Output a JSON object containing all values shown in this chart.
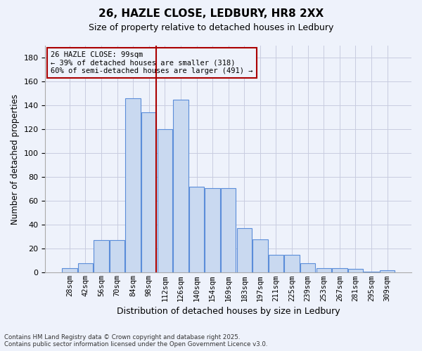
{
  "title": "26, HAZLE CLOSE, LEDBURY, HR8 2XX",
  "subtitle": "Size of property relative to detached houses in Ledbury",
  "xlabel": "Distribution of detached houses by size in Ledbury",
  "ylabel": "Number of detached properties",
  "footer_line1": "Contains HM Land Registry data © Crown copyright and database right 2025.",
  "footer_line2": "Contains public sector information licensed under the Open Government Licence v3.0.",
  "annotation_line1": "26 HAZLE CLOSE: 99sqm",
  "annotation_line2": "← 39% of detached houses are smaller (318)",
  "annotation_line3": "60% of semi-detached houses are larger (491) →",
  "categories": [
    "28sqm",
    "42sqm",
    "56sqm",
    "70sqm",
    "84sqm",
    "98sqm",
    "112sqm",
    "126sqm",
    "140sqm",
    "154sqm",
    "169sqm",
    "183sqm",
    "197sqm",
    "211sqm",
    "225sqm",
    "239sqm",
    "253sqm",
    "267sqm",
    "281sqm",
    "295sqm",
    "309sqm"
  ],
  "values": [
    4,
    8,
    27,
    27,
    146,
    134,
    120,
    145,
    72,
    71,
    71,
    37,
    28,
    15,
    15,
    8,
    4,
    4,
    3,
    1,
    2
  ],
  "bar_color": "#c9d9f0",
  "bar_edge_color": "#5b8dd9",
  "vline_color": "#aa0000",
  "vline_index": 5,
  "annotation_box_edge_color": "#aa0000",
  "background_color": "#eef2fb",
  "grid_color": "#c8cce0",
  "ylim": [
    0,
    190
  ],
  "yticks": [
    0,
    20,
    40,
    60,
    80,
    100,
    120,
    140,
    160,
    180
  ]
}
